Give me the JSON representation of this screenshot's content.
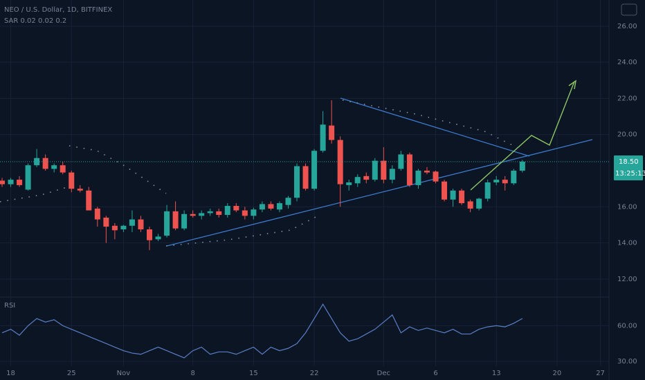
{
  "chart_data": {
    "type": "candlestick",
    "title": "NEO / U.S. Dollar, 1D, BITFINEX",
    "subtitle": "SAR 0.02 0.02 0.2",
    "up_color": "#26a69a",
    "down_color": "#ef5350",
    "open": [
      17.45,
      17.25,
      17.5,
      16.95,
      18.3,
      18.7,
      18.1,
      18.3,
      17.9,
      17.0,
      16.9,
      15.9,
      15.4,
      14.95,
      14.75,
      14.95,
      15.3,
      14.75,
      14.2,
      14.4,
      15.75,
      14.8,
      15.6,
      15.5,
      15.65,
      15.75,
      15.55,
      16.05,
      15.8,
      15.5,
      15.85,
      16.15,
      15.85,
      16.1,
      16.5,
      18.25,
      17.0,
      19.1,
      20.5,
      19.7,
      17.2,
      17.3,
      17.7,
      17.5,
      18.55,
      17.5,
      18.1,
      18.9,
      17.2,
      18.0,
      17.95,
      17.4,
      16.4,
      16.9,
      16.3,
      15.9,
      16.45,
      17.35,
      17.5,
      17.3,
      18.0
    ],
    "high": [
      17.6,
      17.6,
      17.7,
      18.4,
      19.2,
      18.9,
      18.4,
      18.5,
      18.0,
      17.2,
      17.1,
      16.0,
      15.5,
      15.1,
      15.0,
      15.8,
      15.5,
      14.9,
      14.5,
      16.1,
      16.3,
      15.8,
      15.8,
      15.8,
      15.9,
      15.9,
      16.2,
      16.2,
      16.0,
      15.95,
      16.3,
      16.3,
      16.3,
      16.6,
      18.4,
      18.4,
      19.2,
      21.3,
      21.9,
      19.9,
      17.5,
      17.8,
      17.9,
      18.7,
      19.3,
      18.3,
      19.1,
      19.0,
      18.1,
      18.2,
      18.0,
      17.5,
      17.0,
      17.0,
      16.4,
      16.5,
      17.5,
      17.7,
      17.7,
      18.1,
      18.6
    ],
    "low": [
      17.1,
      17.1,
      17.1,
      16.9,
      18.2,
      18.0,
      17.9,
      17.8,
      16.8,
      16.8,
      15.8,
      14.9,
      14.0,
      14.2,
      14.6,
      14.6,
      14.6,
      13.6,
      14.1,
      14.3,
      14.7,
      14.7,
      15.4,
      15.3,
      15.5,
      15.4,
      15.4,
      15.7,
      15.3,
      15.3,
      15.7,
      15.8,
      15.7,
      15.9,
      16.3,
      16.9,
      16.9,
      19.0,
      19.5,
      16.0,
      16.9,
      17.1,
      17.3,
      17.4,
      17.3,
      17.3,
      18.0,
      17.1,
      17.0,
      17.8,
      17.3,
      16.3,
      16.0,
      16.1,
      15.7,
      15.8,
      16.3,
      17.2,
      16.9,
      17.2,
      17.9
    ],
    "close": [
      17.25,
      17.5,
      17.2,
      18.3,
      18.7,
      18.1,
      18.3,
      17.9,
      17.0,
      16.9,
      15.8,
      15.3,
      14.9,
      14.7,
      14.95,
      15.3,
      14.75,
      14.15,
      14.35,
      15.75,
      14.8,
      15.6,
      15.5,
      15.65,
      15.75,
      15.55,
      16.05,
      15.8,
      15.5,
      15.85,
      16.15,
      15.9,
      16.2,
      16.5,
      18.25,
      17.0,
      19.1,
      20.55,
      19.7,
      17.25,
      17.35,
      17.65,
      17.5,
      18.55,
      17.5,
      18.1,
      18.9,
      17.2,
      18.0,
      17.9,
      17.4,
      16.4,
      16.9,
      16.2,
      15.9,
      16.45,
      17.35,
      17.5,
      17.3,
      18.0,
      18.5
    ],
    "ylim": [
      11,
      27.45
    ],
    "yticks": [
      {
        "value": 12,
        "label": "12.00"
      },
      {
        "value": 14,
        "label": "14.00"
      },
      {
        "value": 16,
        "label": "16.00"
      },
      {
        "value": 20,
        "label": "20.00"
      },
      {
        "value": 22,
        "label": "22.00"
      },
      {
        "value": 24,
        "label": "24.00"
      },
      {
        "value": 26,
        "label": "26.00"
      }
    ],
    "last_price": {
      "value": 18.5,
      "label": "18.50"
    },
    "countdown": "13:25:13",
    "xticks": [
      {
        "value": 1,
        "label": "18"
      },
      {
        "value": 8,
        "label": "25"
      },
      {
        "value": 14,
        "label": "Nov"
      },
      {
        "value": 22,
        "label": "8"
      },
      {
        "value": 29,
        "label": "15"
      },
      {
        "value": 36,
        "label": "22"
      },
      {
        "value": 44,
        "label": "Dec"
      },
      {
        "value": 50,
        "label": "6"
      },
      {
        "value": 57,
        "label": "13"
      },
      {
        "value": 64,
        "label": "20"
      },
      {
        "value": 69,
        "label": "27"
      }
    ],
    "indicator": {
      "type": "line",
      "name": "RSI",
      "color": "#5b7fc7",
      "values": [
        54,
        57,
        52,
        60,
        66,
        63,
        65,
        60,
        57,
        54,
        51,
        48,
        45,
        42,
        39,
        37,
        36,
        39,
        42,
        39,
        36,
        33,
        39,
        42,
        36,
        38,
        38,
        36,
        39,
        42,
        36,
        42,
        39,
        41,
        45,
        54,
        66,
        78,
        66,
        54,
        47,
        49,
        53,
        57,
        63,
        69,
        54,
        59,
        56,
        58,
        56,
        54,
        57,
        53,
        53,
        57,
        59,
        60,
        59,
        62,
        66
      ],
      "ylim": [
        26,
        84
      ],
      "yticks": [
        {
          "value": 30,
          "label": "30.00"
        },
        {
          "value": 60,
          "label": "60.00"
        }
      ]
    }
  }
}
